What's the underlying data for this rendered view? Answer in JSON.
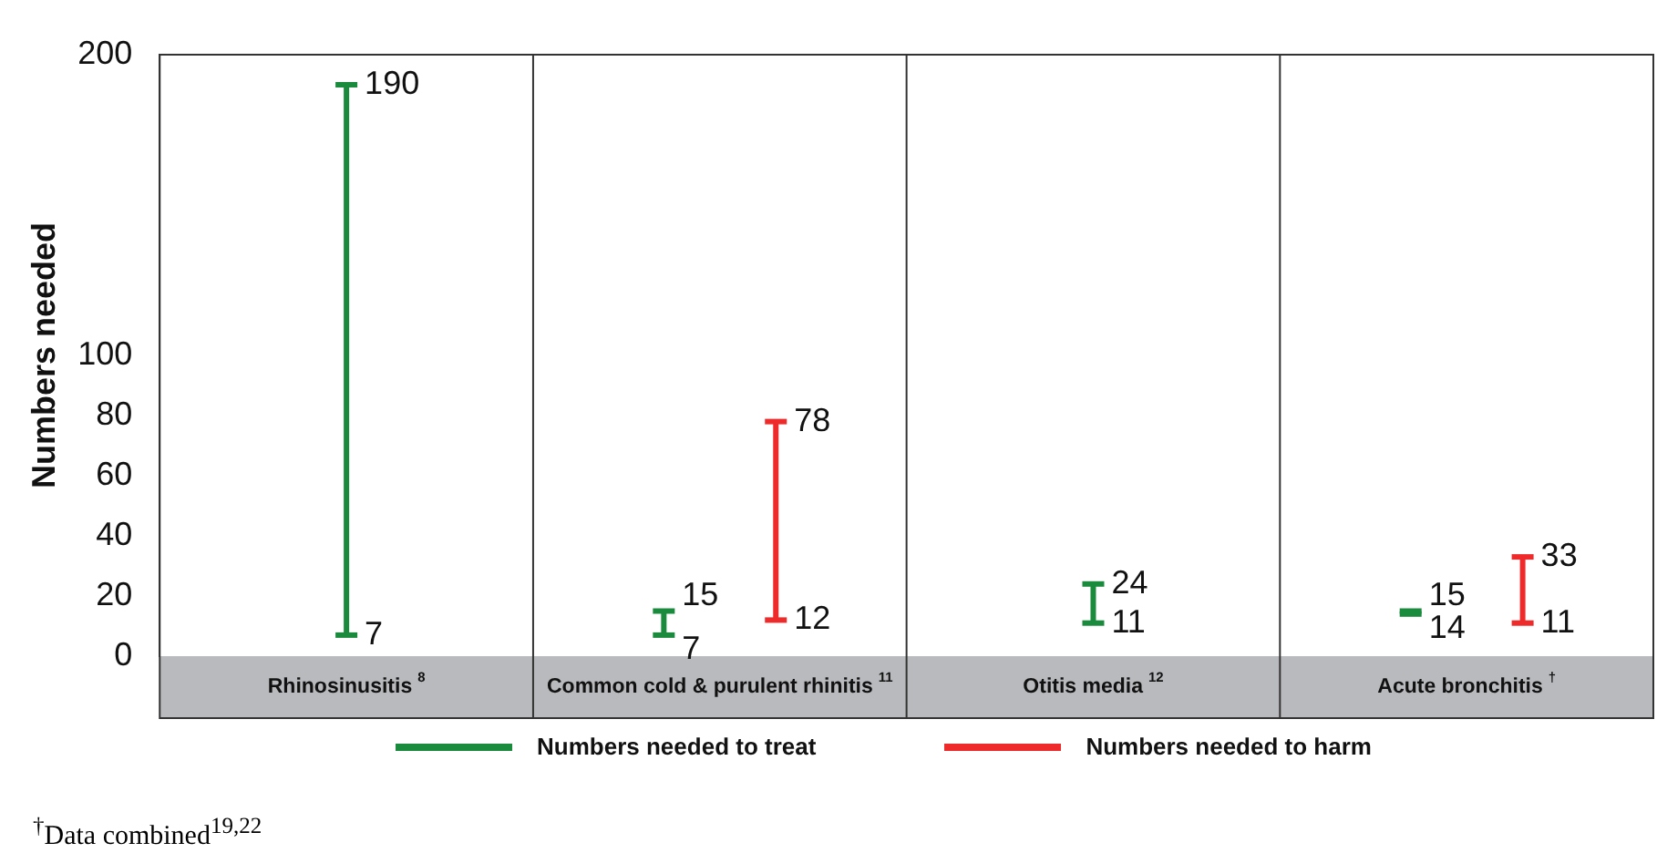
{
  "chart_data": {
    "type": "bar",
    "ylabel": "Numbers needed",
    "categories": [
      "Rhinosinusitis$^{8}$",
      "Common cold & purulent rhinitis$^{11}$",
      "Otitis media$^{12}$",
      "Acute bronchitis$^{†}$"
    ],
    "series": [
      {
        "name": "Numbers needed to treat",
        "color": "#1a8a3c",
        "base": [
          7,
          7,
          11,
          14
        ],
        "values": [
          183,
          8,
          13,
          1
        ]
      },
      {
        "name": "Numbers needed to harm",
        "color": "#ee2a2a",
        "base": [
          null,
          12,
          null,
          11
        ],
        "values": [
          null,
          66,
          null,
          22
        ]
      }
    ],
    "ylim": [
      0,
      200
    ],
    "yticks": [
      0,
      20,
      40,
      60,
      80,
      100,
      200
    ],
    "grid": false,
    "legend": "bottom",
    "annotations": [
      "190",
      "7",
      "15",
      "7",
      "24",
      "11",
      "15",
      "14",
      "78",
      "12",
      "33",
      "11",
      "$^{†}$Data combined$^{19,22}$"
    ]
  }
}
